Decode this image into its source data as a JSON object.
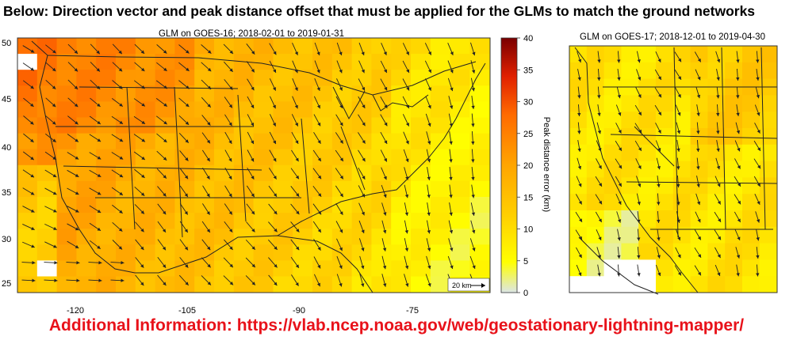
{
  "heading": "Below: Direction vector and peak distance offset that must be applied for the GLMs to match the ground networks",
  "footer": "Additional Information: https://vlab.ncep.noaa.gov/web/geostationary-lightning-mapper/",
  "left_map": {
    "title": "GLM on GOES-16; 2018-02-01 to 2019-01-31",
    "lat_labels": [
      "50",
      "45",
      "40",
      "35",
      "30",
      "25"
    ],
    "lon_labels": [
      "-120",
      "-105",
      "-90",
      "-75"
    ],
    "scale_label": "20 km"
  },
  "right_map": {
    "title": "GLM on GOES-17; 2018-12-01 to 2019-04-30"
  },
  "colorbar": {
    "label": "Peak distance error (km)",
    "ticks": [
      "40",
      "35",
      "30",
      "25",
      "20",
      "15",
      "10",
      "5",
      "0"
    ],
    "range": [
      0,
      40
    ],
    "colors": [
      "#dce6e6",
      "#ffff00",
      "#ffd000",
      "#ffa500",
      "#ff6a00",
      "#e02000",
      "#7a0000"
    ]
  }
}
